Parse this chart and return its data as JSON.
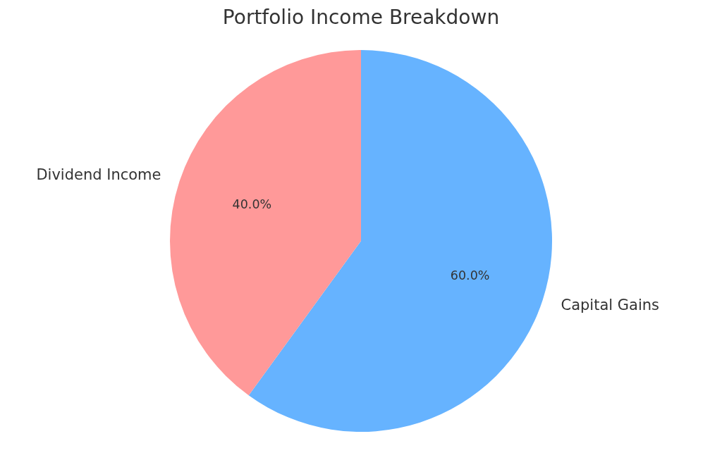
{
  "chart_data": {
    "type": "pie",
    "title": "Portfolio Income Breakdown",
    "categories": [
      "Capital Gains",
      "Dividend Income"
    ],
    "values": [
      60,
      40
    ],
    "colors": [
      "#66b3ff",
      "#ff9999"
    ],
    "value_labels": [
      "60.0%",
      "40.0%"
    ]
  }
}
